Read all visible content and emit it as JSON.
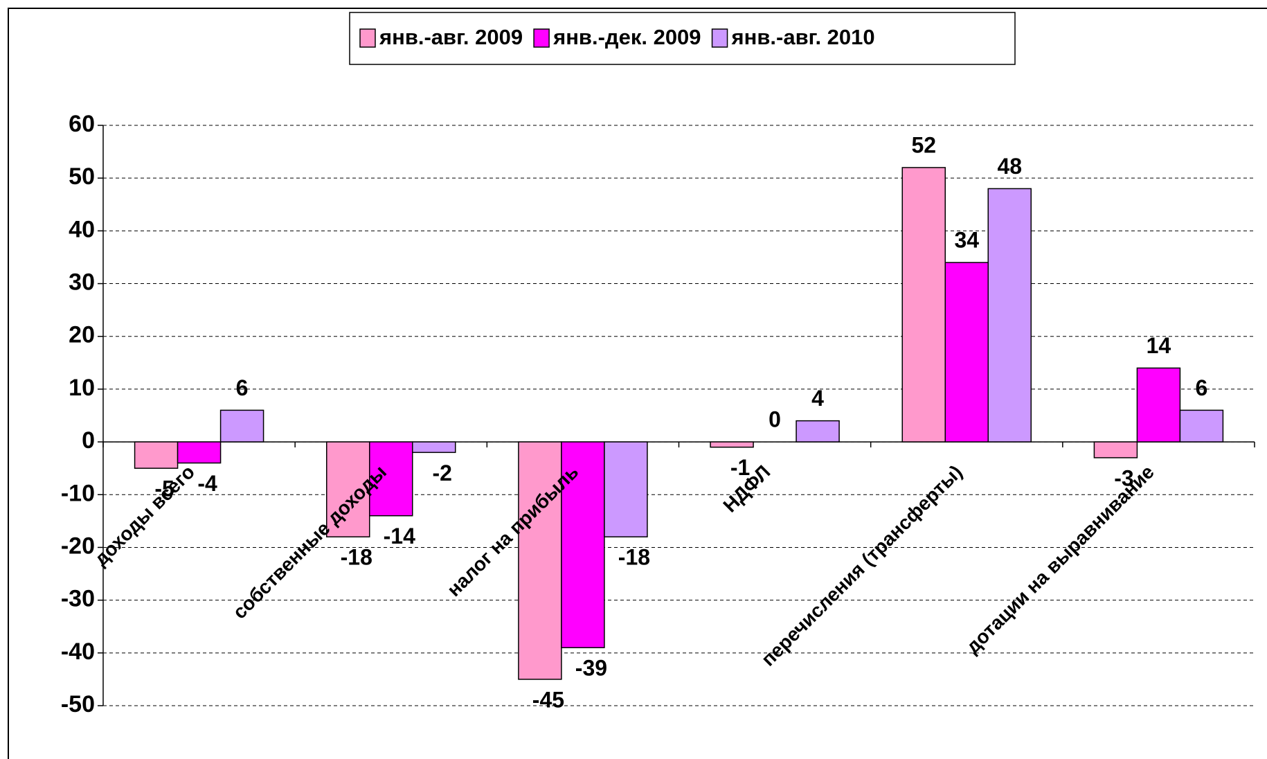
{
  "chart_data": {
    "type": "bar",
    "categories": [
      "доходы всего",
      "собственные доходы",
      "налог на прибыль",
      "НДФЛ",
      "перечисления (трансферты)",
      "дотации на выравнивание"
    ],
    "series": [
      {
        "name": "янв.-авг. 2009",
        "color": "#ff99cc",
        "values": [
          -5,
          -18,
          -45,
          -1,
          52,
          -3
        ]
      },
      {
        "name": "янв.-дек. 2009",
        "color": "#ff00ff",
        "values": [
          -4,
          -14,
          -39,
          0,
          34,
          14
        ]
      },
      {
        "name": "янв.-авг. 2010",
        "color": "#cc99ff",
        "values": [
          6,
          -2,
          -18,
          4,
          48,
          6
        ]
      }
    ],
    "ylim": [
      -50,
      60
    ],
    "yticks": [
      -50,
      -40,
      -30,
      -20,
      -10,
      0,
      10,
      20,
      30,
      40,
      50,
      60
    ],
    "grid": true,
    "legend": "top"
  }
}
